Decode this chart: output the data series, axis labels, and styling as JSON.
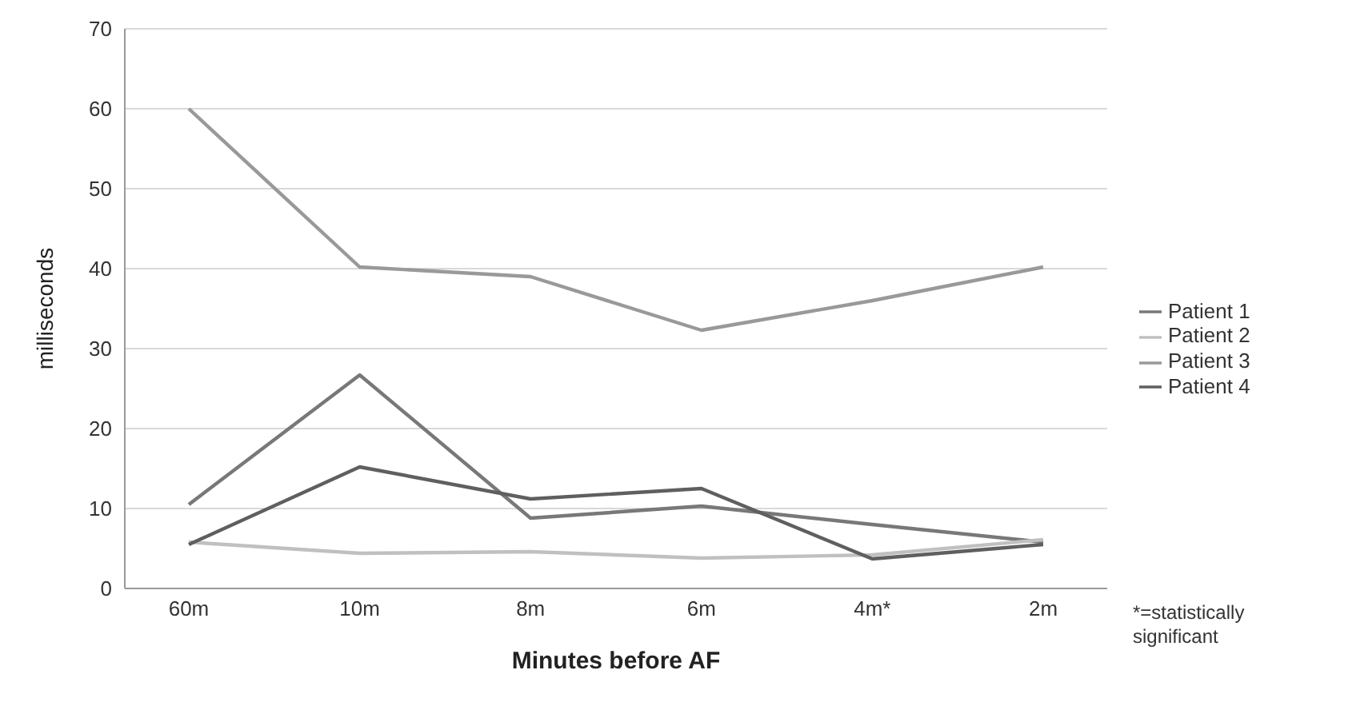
{
  "chart_data": {
    "type": "line",
    "xlabel": "Minutes before AF",
    "ylabel": "milliseconds",
    "categories": [
      "60m",
      "10m",
      "8m",
      "6m",
      "4m*",
      "2m"
    ],
    "series": [
      {
        "name": "Patient 1",
        "color": "#787878",
        "values": [
          10.5,
          26.7,
          8.8,
          10.3,
          8,
          5.8
        ]
      },
      {
        "name": "Patient 2",
        "color": "#c0c0c0",
        "values": [
          5.8,
          4.4,
          4.6,
          3.8,
          4.2,
          6.1
        ]
      },
      {
        "name": "Patient 3",
        "color": "#999999",
        "values": [
          60,
          40.2,
          39,
          32.3,
          36,
          40.2
        ]
      },
      {
        "name": "Patient 4",
        "color": "#5f5f5f",
        "values": [
          5.5,
          15.2,
          11.2,
          12.5,
          3.7,
          5.5
        ]
      }
    ],
    "ylim": [
      0,
      70
    ],
    "yticks": [
      0,
      10,
      20,
      30,
      40,
      50,
      60,
      70
    ],
    "grid": "y",
    "legend": "right",
    "marker": "none",
    "line_style": "solid",
    "annotations": [
      "*=statistically significant"
    ]
  }
}
